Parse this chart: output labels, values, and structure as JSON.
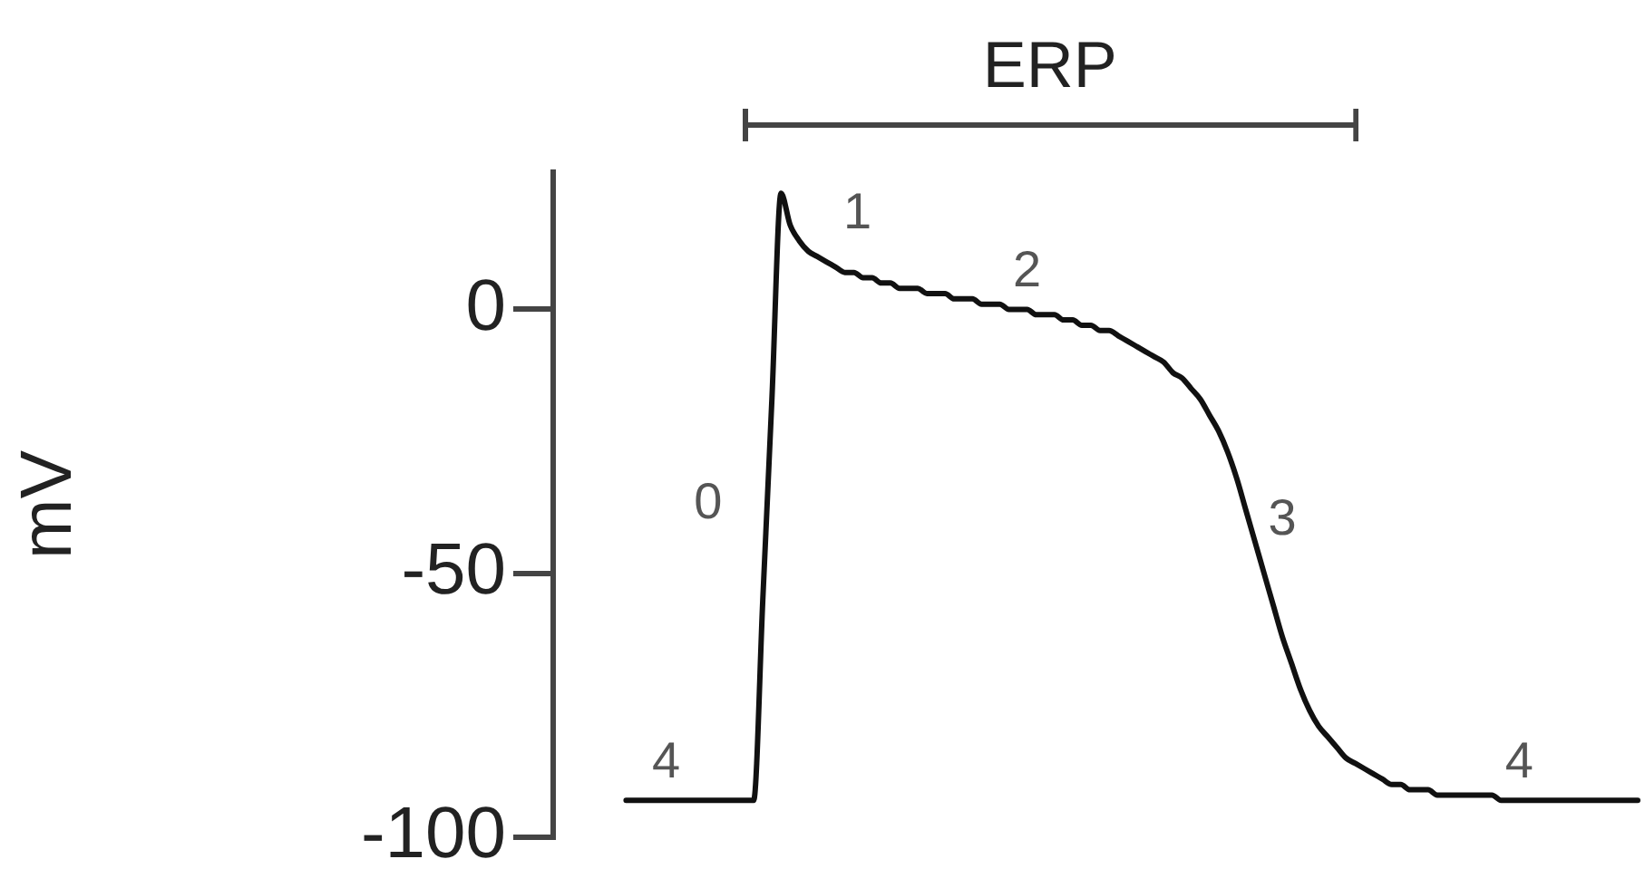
{
  "chart_data": {
    "type": "line",
    "ylabel": "mV",
    "annotations": [
      "ERP",
      "0",
      "1",
      "2",
      "3",
      "4",
      "4"
    ],
    "categories": [
      null,
      null,
      null,
      null,
      null,
      null,
      null,
      null,
      null,
      null,
      null,
      null,
      null,
      null,
      null,
      null,
      null,
      null,
      null,
      null,
      null,
      null,
      null,
      null,
      null,
      null,
      null,
      null,
      null,
      null,
      null,
      null,
      null,
      null,
      null,
      null,
      null,
      null,
      null,
      null,
      null,
      null,
      null,
      null,
      null,
      null,
      null,
      null,
      null,
      null,
      null,
      null,
      null,
      null,
      null,
      null,
      null,
      null,
      null,
      null,
      null,
      null,
      null,
      null,
      null,
      null,
      null,
      null,
      null,
      null,
      null,
      null,
      null,
      null,
      null,
      null,
      null,
      null,
      null,
      null,
      null,
      null,
      null,
      null,
      null,
      null,
      null,
      null,
      null,
      null,
      null,
      null,
      null,
      null,
      null,
      null,
      null,
      null,
      null,
      null,
      null,
      null,
      null,
      null,
      null,
      null,
      null,
      null,
      null,
      null,
      null,
      null,
      null,
      null,
      null,
      null,
      null,
      null,
      null,
      null
    ],
    "series": [
      {
        "color": "#111111",
        "values": [
          null,
          null,
          null,
          null,
          null,
          null,
          null,
          null,
          -93,
          -93,
          -93,
          -93,
          -93,
          -93,
          -93,
          -93,
          -93,
          -93,
          -93,
          -93,
          -93,
          -93,
          -93,
          -55,
          -17,
          22,
          16,
          13,
          11,
          10,
          9,
          8,
          7,
          7,
          6,
          6,
          5,
          5,
          4,
          4,
          4,
          3,
          3,
          3,
          2,
          2,
          2,
          1,
          1,
          1,
          0,
          0,
          0,
          -1,
          -1,
          -1,
          -2,
          -2,
          -3,
          -3,
          -4,
          -4,
          -5,
          -6,
          -7,
          -8,
          -9,
          -10,
          -12,
          -13,
          -15,
          -17,
          -20,
          -23,
          -27,
          -32,
          -38,
          -44,
          -50,
          -56,
          -62,
          -67,
          -72,
          -76,
          -79,
          -81,
          -83,
          -85,
          -86,
          -87,
          -88,
          -89,
          -90,
          -90,
          -91,
          -91,
          -91,
          -92,
          -92,
          -92,
          -92,
          -92,
          -92,
          -92,
          -93,
          -93,
          -93,
          -93,
          -93,
          -93,
          -93,
          -93,
          -93,
          -93,
          -93,
          -93,
          -93,
          -93,
          -93,
          -93
        ]
      }
    ],
    "ylim": [
      -100,
      26
    ],
    "yticks": [
      0,
      -50,
      -100
    ],
    "grid": false,
    "legend": false,
    "tick_labels": "y",
    "marker": "none",
    "line_style": "solid"
  }
}
